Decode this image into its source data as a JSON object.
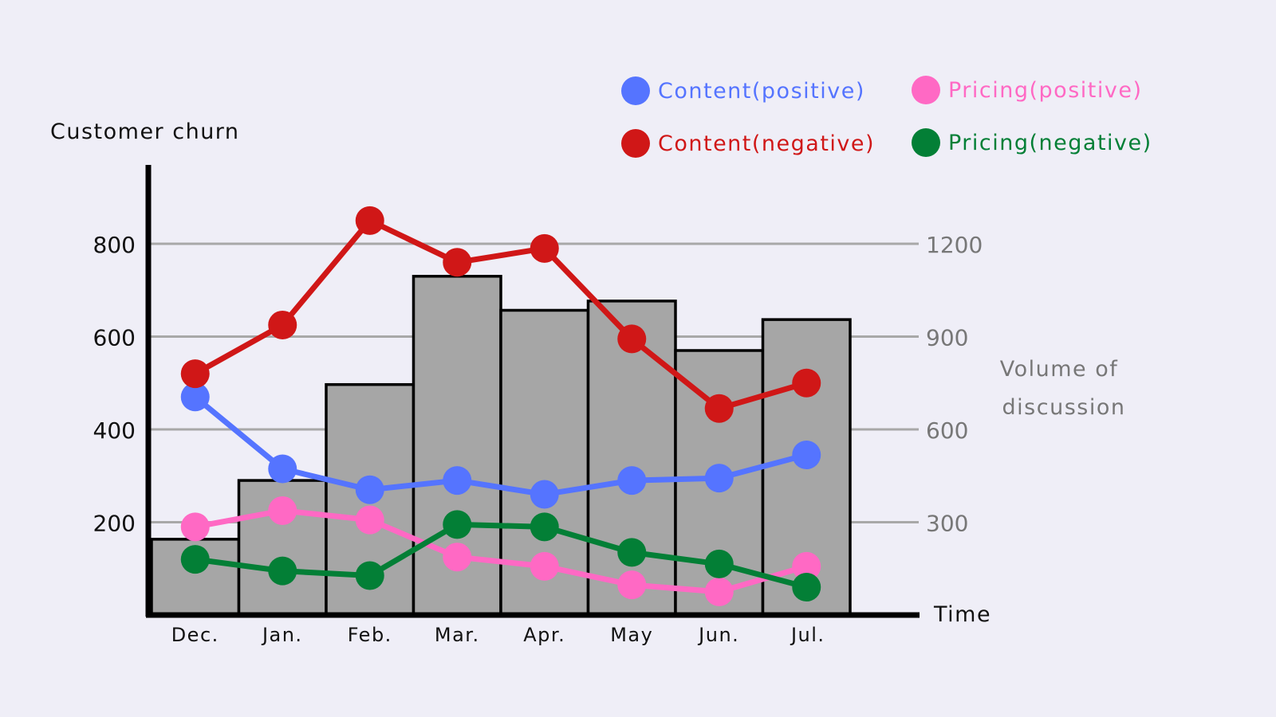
{
  "chart_data": {
    "type": "bar+line",
    "title": "",
    "xlabel": "Time",
    "ylabel": "Customer churn",
    "y2label": "Volume of discussion",
    "ylim": [
      0,
      960
    ],
    "y2lim": [
      0,
      1440
    ],
    "y_ticks": [
      200,
      400,
      600,
      800
    ],
    "y2_ticks": [
      300,
      600,
      900,
      1200
    ],
    "grid": true,
    "legend_position": "top-right",
    "categories": [
      "Dec.",
      "Jan.",
      "Feb.",
      "Mar.",
      "Apr.",
      "May",
      "Jun.",
      "Jul."
    ],
    "bars": {
      "name": "Volume of discussion",
      "axis": "right",
      "color": "#a6a6a6",
      "values": [
        245,
        435,
        745,
        1095,
        985,
        1015,
        855,
        955
      ]
    },
    "series": [
      {
        "name": "Content(positive)",
        "axis": "left",
        "color": "#5574ff",
        "values": [
          470,
          315,
          270,
          290,
          260,
          290,
          295,
          345
        ]
      },
      {
        "name": "Content(negative)",
        "axis": "left",
        "color": "#d01717",
        "values": [
          520,
          625,
          850,
          760,
          790,
          595,
          445,
          500
        ]
      },
      {
        "name": "Pricing(positive)",
        "axis": "left",
        "color": "#ff69c4",
        "values": [
          190,
          225,
          205,
          125,
          105,
          65,
          50,
          105
        ]
      },
      {
        "name": "Pricing(negative)",
        "axis": "left",
        "color": "#037f36",
        "values": [
          120,
          95,
          85,
          195,
          190,
          135,
          110,
          60
        ]
      }
    ]
  },
  "labels": {
    "y_axis_title": "Customer churn",
    "y2_axis_title_line1": "Volume of",
    "y2_axis_title_line2": "discussion",
    "x_axis_title": "Time"
  },
  "legend": [
    {
      "label": "Content(positive)",
      "color": "#5574ff"
    },
    {
      "label": "Pricing(positive)",
      "color": "#ff69c4"
    },
    {
      "label": "Content(negative)",
      "color": "#d01717"
    },
    {
      "label": "Pricing(negative)",
      "color": "#037f36"
    }
  ]
}
